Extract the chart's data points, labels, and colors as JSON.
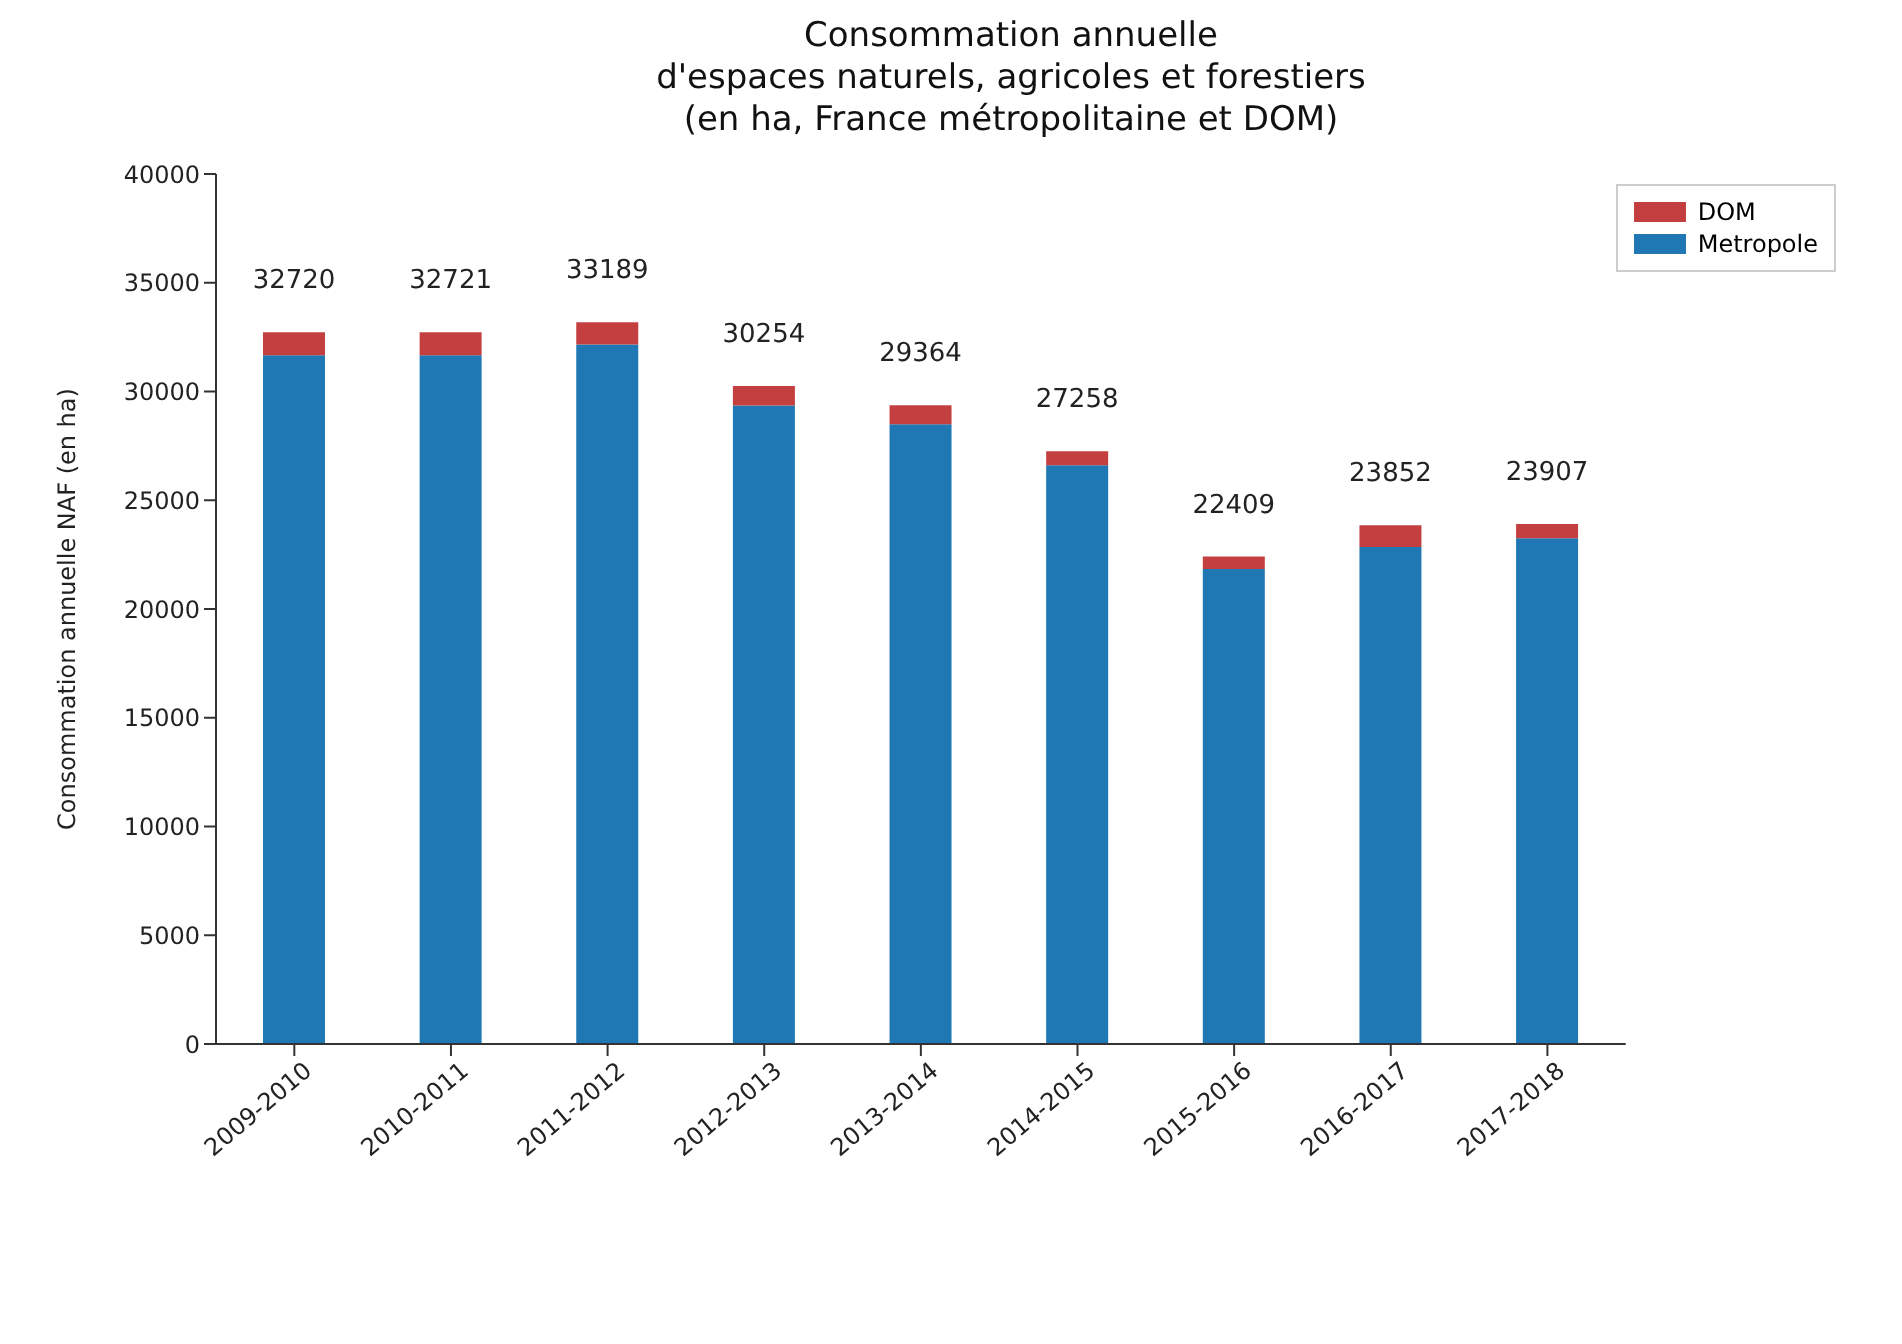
{
  "chart_data": {
    "type": "bar",
    "title": "Consommation annuelle\nd'espaces naturels, agricoles et forestiers\n(en ha, France métropolitaine et DOM)",
    "ylabel": "Consommation annuelle NAF (en ha)",
    "categories": [
      "2009-2010",
      "2010-2011",
      "2011-2012",
      "2012-2013",
      "2013-2014",
      "2014-2015",
      "2015-2016",
      "2016-2017",
      "2017-2018"
    ],
    "series": [
      {
        "name": "Metropole",
        "color": "#1f77b4",
        "values": [
          31670,
          31671,
          32159,
          29354,
          28494,
          26608,
          21839,
          22852,
          23257
        ]
      },
      {
        "name": "DOM",
        "color": "#c44040",
        "values": [
          1050,
          1050,
          1030,
          900,
          870,
          650,
          570,
          1000,
          650
        ]
      }
    ],
    "stacked": true,
    "totals": [
      "32720",
      "32721",
      "33189",
      "30254",
      "29364",
      "27258",
      "22409",
      "23852",
      "23907"
    ],
    "ylim": [
      0,
      40000
    ],
    "yticks": [
      0,
      5000,
      10000,
      15000,
      20000,
      25000,
      30000,
      35000,
      40000
    ],
    "grid": false,
    "legend": "top right"
  }
}
